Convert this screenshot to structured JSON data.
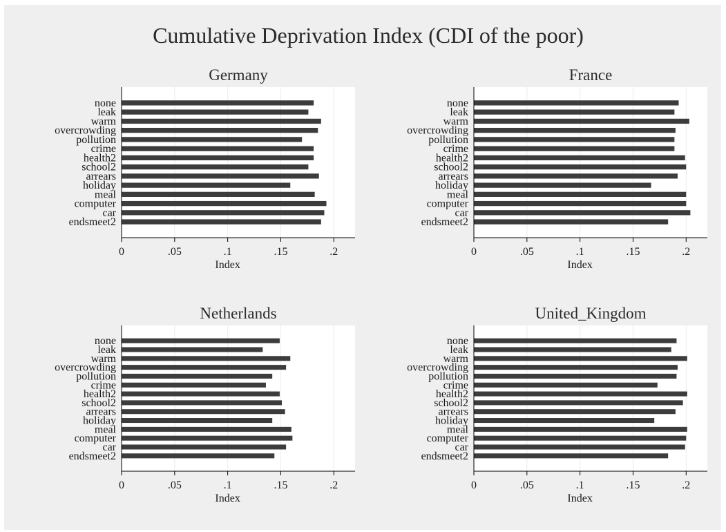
{
  "title": "Cumulative Deprivation Index (CDI of the poor)",
  "colors": {
    "background": "#efefef",
    "plot_area": "#ffffff",
    "bar": "#3c3c3c",
    "gridline": "#ebebeb",
    "text": "#1a1a1a"
  },
  "chart_data": [
    {
      "type": "bar",
      "orientation": "horizontal",
      "title": "Germany",
      "xlabel": "Index",
      "xlim": [
        0,
        0.22
      ],
      "xticks": [
        0,
        0.05,
        0.1,
        0.15,
        0.2
      ],
      "xtick_labels": [
        "0",
        ".05",
        ".1",
        ".15",
        ".2"
      ],
      "grid": true,
      "categories": [
        "none",
        "leak",
        "warm",
        "overcrowding",
        "pollution",
        "crime",
        "health2",
        "school2",
        "arrears",
        "holiday",
        "meal",
        "computer",
        "car",
        "endsmeet2"
      ],
      "values": [
        0.181,
        0.176,
        0.188,
        0.185,
        0.17,
        0.181,
        0.181,
        0.176,
        0.186,
        0.159,
        0.182,
        0.193,
        0.191,
        0.188
      ]
    },
    {
      "type": "bar",
      "orientation": "horizontal",
      "title": "France",
      "xlabel": "Index",
      "xlim": [
        0,
        0.22
      ],
      "xticks": [
        0,
        0.05,
        0.1,
        0.15,
        0.2
      ],
      "xtick_labels": [
        "0",
        ".05",
        ".1",
        ".15",
        ".2"
      ],
      "grid": true,
      "categories": [
        "none",
        "leak",
        "warm",
        "overcrowding",
        "pollution",
        "crime",
        "health2",
        "school2",
        "arrears",
        "holiday",
        "meal",
        "computer",
        "car",
        "endsmeet2"
      ],
      "values": [
        0.193,
        0.189,
        0.203,
        0.19,
        0.189,
        0.189,
        0.199,
        0.2,
        0.192,
        0.167,
        0.2,
        0.2,
        0.204,
        0.183
      ]
    },
    {
      "type": "bar",
      "orientation": "horizontal",
      "title": "Netherlands",
      "xlabel": "Index",
      "xlim": [
        0,
        0.22
      ],
      "xticks": [
        0,
        0.05,
        0.1,
        0.15,
        0.2
      ],
      "xtick_labels": [
        "0",
        ".05",
        ".1",
        ".15",
        ".2"
      ],
      "grid": true,
      "categories": [
        "none",
        "leak",
        "warm",
        "overcrowding",
        "pollution",
        "crime",
        "health2",
        "school2",
        "arrears",
        "holiday",
        "meal",
        "computer",
        "car",
        "endsmeet2"
      ],
      "values": [
        0.149,
        0.133,
        0.159,
        0.155,
        0.142,
        0.136,
        0.149,
        0.151,
        0.154,
        0.142,
        0.16,
        0.161,
        0.155,
        0.144
      ]
    },
    {
      "type": "bar",
      "orientation": "horizontal",
      "title": "United_Kingdom",
      "xlabel": "Index",
      "xlim": [
        0,
        0.22
      ],
      "xticks": [
        0,
        0.05,
        0.1,
        0.15,
        0.2
      ],
      "xtick_labels": [
        "0",
        ".05",
        ".1",
        ".15",
        ".2"
      ],
      "grid": true,
      "categories": [
        "none",
        "leak",
        "warm",
        "overcrowding",
        "pollution",
        "crime",
        "health2",
        "school2",
        "arrears",
        "holiday",
        "meal",
        "computer",
        "car",
        "endsmeet2"
      ],
      "values": [
        0.191,
        0.186,
        0.201,
        0.192,
        0.191,
        0.173,
        0.201,
        0.197,
        0.19,
        0.17,
        0.201,
        0.2,
        0.199,
        0.183
      ]
    }
  ]
}
